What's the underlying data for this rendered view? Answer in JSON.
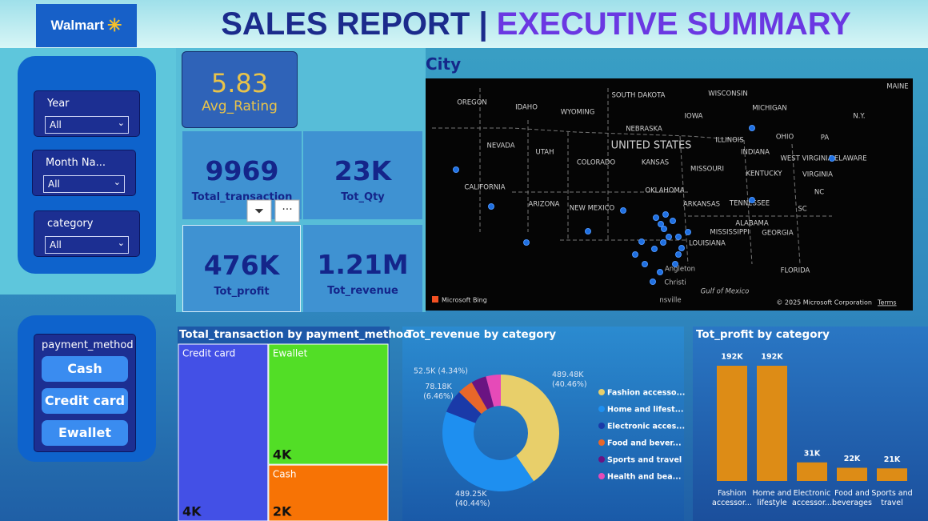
{
  "header": {
    "logo": "Walmart",
    "title_main": "SALES REPORT |",
    "title_accent": "EXECUTIVE SUMMARY"
  },
  "slicers": [
    {
      "label": "Year",
      "value": "All"
    },
    {
      "label": "Month Na...",
      "value": "All"
    },
    {
      "label": "category",
      "value": "All"
    }
  ],
  "payment_slicer": {
    "title": "payment_method",
    "options": [
      "Cash",
      "Credit card",
      "Ewallet"
    ]
  },
  "kpis": [
    {
      "value": 5.83,
      "label": "Avg_Rating"
    },
    {
      "value": 9969,
      "label": "Total_transaction"
    },
    {
      "value": "23K",
      "label": "Tot_Qty"
    },
    {
      "value": "476K",
      "label": "Tot_profit"
    },
    {
      "value": "1.21M",
      "label": "Tot_revenue"
    }
  ],
  "map": {
    "title": "City",
    "labels": [
      "OREGON",
      "IDAHO",
      "WYOMING",
      "SOUTH DAKOTA",
      "WISCONSIN",
      "MICHIGAN",
      "MAINE",
      "NEBRASKA",
      "IOWA",
      "NEVADA",
      "UTAH",
      "UNITED STATES",
      "ILLINOIS",
      "INDIANA",
      "OHIO",
      "PA",
      "N.Y.",
      "CALIFORNIA",
      "COLORADO",
      "KANSAS",
      "MISSOURI",
      "KENTUCKY",
      "WEST VIRGINIA",
      "VIRGINIA",
      "DELAWARE",
      "ARIZONA",
      "NEW MEXICO",
      "OKLAHOMA",
      "ARKANSAS",
      "TENNESSEE",
      "NC",
      "SC",
      "ALABAMA",
      "GEORGIA",
      "MISSISSIPPI",
      "LOUISIANA",
      "FLORIDA",
      "Gulf of Mexico",
      "Angleton",
      "Christi",
      "nsville"
    ],
    "provider": "Microsoft Bing",
    "copyright": "© 2025 Microsoft Corporation",
    "terms": "Terms"
  },
  "chart_data": [
    {
      "type": "treemap",
      "title": "Total_transaction by payment_method",
      "categories": [
        "Credit card",
        "Ewallet",
        "Cash"
      ],
      "values": [
        4256,
        3881,
        1832
      ],
      "value_labels": [
        "4K",
        "4K",
        "2K"
      ],
      "colors": [
        "#4350e6",
        "#52de26",
        "#f77305"
      ]
    },
    {
      "type": "donut",
      "title": "Tot_revenue by category",
      "categories": [
        "Fashion accesso...",
        "Home and lifest...",
        "Electronic acces...",
        "Food and bever...",
        "Sports and travel",
        "Health and bea..."
      ],
      "values": [
        489480,
        489250,
        78180,
        52500,
        50600,
        49790
      ],
      "value_labels": [
        "489.48K (40.46%)",
        "489.25K (40.44%)",
        "78.18K (6.46%)",
        "52.5K (4.34%)",
        null,
        null
      ],
      "colors": [
        "#e8cf6a",
        "#1e8ff0",
        "#1a3aa8",
        "#e8672a",
        "#6a1482",
        "#e64ab8"
      ]
    },
    {
      "type": "bar",
      "title": "Tot_profit by category",
      "categories": [
        "Fashion accessor...",
        "Home and lifestyle",
        "Electronic accessor...",
        "Food and beverages",
        "Sports and travel"
      ],
      "values": [
        192000,
        192000,
        31000,
        22000,
        21000
      ],
      "value_labels": [
        "192K",
        "192K",
        "31K",
        "22K",
        "21K"
      ],
      "color": "#dd8c16"
    }
  ]
}
